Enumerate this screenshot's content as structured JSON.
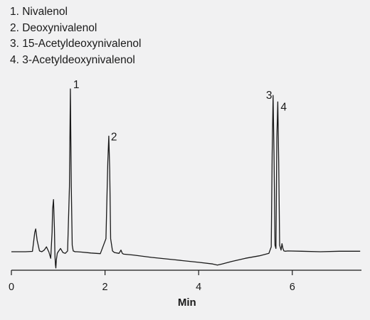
{
  "legend": [
    "1. Nivalenol",
    "2. Deoxynivalenol",
    "3. 15-Acetyldeoxynivalenol",
    "4. 3-Acetyldeoxynivalenol"
  ],
  "chart_data": {
    "type": "line",
    "title": "",
    "xlabel": "Min",
    "ylabel": "",
    "xlim": [
      0,
      7.5
    ],
    "xticks": [
      0,
      2,
      4,
      6
    ],
    "grid": false,
    "line_color": "#1a1a1a",
    "series": [
      {
        "x": [
          0,
          0.3,
          0.45,
          0.5,
          0.52,
          0.55,
          0.6,
          0.65,
          0.7,
          0.75,
          0.79,
          0.8,
          0.84,
          0.87,
          0.88,
          0.9,
          0.92,
          0.93,
          0.94,
          0.95,
          0.96,
          0.98,
          1.0,
          1.05,
          1.1,
          1.15,
          1.2,
          1.24,
          1.26,
          1.28,
          1.3,
          1.32,
          1.36,
          1.4,
          1.5,
          1.7,
          1.9,
          2.02,
          2.06,
          2.08,
          2.1,
          2.12,
          2.16,
          2.2,
          2.3,
          2.34,
          2.37,
          2.4,
          2.6,
          3.0,
          3.5,
          4.0,
          4.3,
          4.4,
          4.5,
          4.7,
          5.0,
          5.3,
          5.5,
          5.55,
          5.57,
          5.59,
          5.61,
          5.63,
          5.65,
          5.67,
          5.69,
          5.71,
          5.73,
          5.76,
          5.78,
          5.8,
          5.82,
          5.85,
          5.9,
          6.2,
          6.6,
          7.0,
          7.45
        ],
        "y": [
          0,
          0,
          0.2,
          12,
          14,
          7,
          0.5,
          0,
          1,
          3,
          0.5,
          0,
          -4,
          12,
          26,
          32,
          14,
          -2,
          -8,
          -10,
          -5,
          -1,
          0,
          2,
          -0.5,
          -1,
          0.5,
          40,
          100,
          40,
          4,
          0.5,
          0,
          0,
          -0.2,
          -0.8,
          -1.2,
          8,
          55,
          71,
          50,
          8,
          0.5,
          -0.5,
          -1,
          1,
          -1,
          -1.5,
          -2,
          -3.5,
          -5,
          -6.5,
          -7.5,
          -8.2,
          -7.5,
          -6,
          -4,
          -2.5,
          -1,
          3,
          60,
          96,
          60,
          4,
          2,
          70,
          92,
          55,
          4,
          1,
          5,
          2,
          0.5,
          0.3,
          0.5,
          0.3,
          0,
          0.3,
          0.3
        ]
      }
    ],
    "peaks": [
      {
        "label": "1",
        "time": 1.26
      },
      {
        "label": "2",
        "time": 2.08
      },
      {
        "label": "3",
        "time": 5.59
      },
      {
        "label": "4",
        "time": 5.69
      }
    ]
  }
}
